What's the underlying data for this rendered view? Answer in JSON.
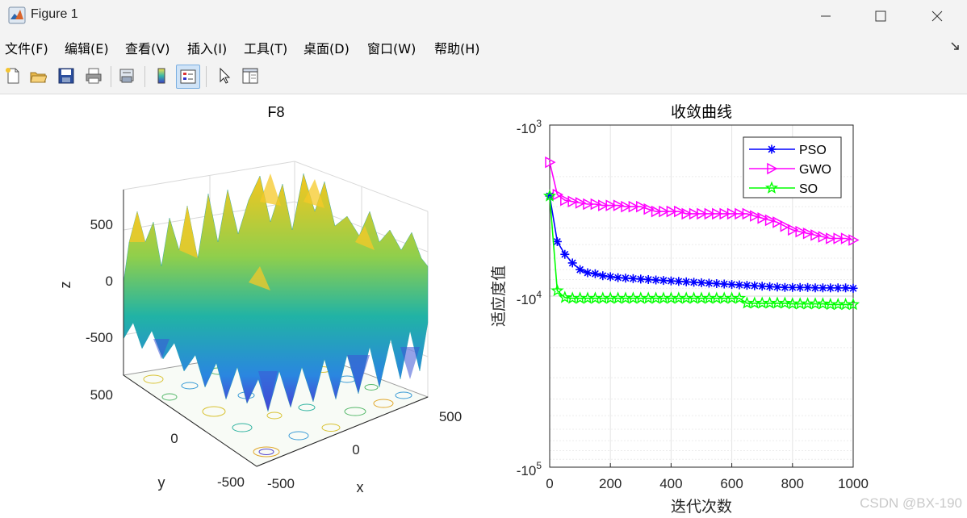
{
  "window": {
    "title": "Figure 1"
  },
  "menu": [
    "文件(F)",
    "编辑(E)",
    "查看(V)",
    "插入(I)",
    "工具(T)",
    "桌面(D)",
    "窗口(W)",
    "帮助(H)"
  ],
  "toolbar": [
    "new-figure-icon",
    "open-file-icon",
    "save-icon",
    "print-icon",
    "print-preview-icon",
    "colorbar-icon",
    "legend-icon",
    "pointer-icon",
    "property-editor-icon"
  ],
  "surface_plot": {
    "title": "F8",
    "xlabel": "x",
    "ylabel": "y",
    "zlabel": "z",
    "z_ticks": [
      "500",
      "0",
      "-500"
    ],
    "y_ticks": [
      "500",
      "0",
      "-500"
    ],
    "x_ticks": [
      "-500",
      "0",
      "500"
    ]
  },
  "chart_data": {
    "type": "line",
    "title": "收敛曲线",
    "xlabel": "迭代次数",
    "ylabel": "适应度值",
    "yscale": "log (negative values)",
    "xlim": [
      0,
      1000
    ],
    "ylim": [
      -1000,
      -100000
    ],
    "x_ticks": [
      "0",
      "200",
      "400",
      "600",
      "800",
      "1000"
    ],
    "y_ticks": [
      {
        "base": "-10",
        "exp": "3"
      },
      {
        "base": "-10",
        "exp": "4"
      },
      {
        "base": "-10",
        "exp": "5"
      }
    ],
    "grid": true,
    "legend_position": "top-right",
    "x": [
      0,
      25,
      50,
      75,
      100,
      125,
      150,
      175,
      200,
      225,
      250,
      275,
      300,
      325,
      350,
      375,
      400,
      425,
      450,
      475,
      500,
      525,
      550,
      575,
      600,
      625,
      650,
      675,
      700,
      725,
      750,
      775,
      800,
      825,
      850,
      875,
      900,
      925,
      950,
      975,
      1000
    ],
    "series": [
      {
        "name": "PSO",
        "color": "#0000ff",
        "marker": "asterisk",
        "values": [
          -2600,
          -4800,
          -5700,
          -6400,
          -7000,
          -7300,
          -7400,
          -7600,
          -7700,
          -7800,
          -7850,
          -7900,
          -7950,
          -8000,
          -8050,
          -8100,
          -8150,
          -8200,
          -8250,
          -8300,
          -8350,
          -8400,
          -8450,
          -8500,
          -8550,
          -8600,
          -8650,
          -8700,
          -8750,
          -8800,
          -8850,
          -8900,
          -8900,
          -8900,
          -8900,
          -8950,
          -8950,
          -8950,
          -8950,
          -8950,
          -9000
        ]
      },
      {
        "name": "GWO",
        "color": "#ff00ff",
        "marker": "triangle-right",
        "values": [
          -1650,
          -2550,
          -2750,
          -2800,
          -2850,
          -2900,
          -2900,
          -2950,
          -2950,
          -2950,
          -3000,
          -3000,
          -3000,
          -3100,
          -3200,
          -3200,
          -3200,
          -3200,
          -3300,
          -3300,
          -3300,
          -3300,
          -3300,
          -3300,
          -3300,
          -3300,
          -3300,
          -3400,
          -3500,
          -3600,
          -3700,
          -3900,
          -4100,
          -4200,
          -4300,
          -4400,
          -4500,
          -4600,
          -4600,
          -4600,
          -4700
        ]
      },
      {
        "name": "SO",
        "color": "#00ff00",
        "marker": "star",
        "values": [
          -2600,
          -9300,
          -10200,
          -10300,
          -10300,
          -10300,
          -10300,
          -10300,
          -10300,
          -10300,
          -10300,
          -10300,
          -10300,
          -10300,
          -10300,
          -10300,
          -10300,
          -10300,
          -10300,
          -10300,
          -10300,
          -10300,
          -10300,
          -10300,
          -10300,
          -10300,
          -11000,
          -11000,
          -11000,
          -11000,
          -11000,
          -11000,
          -11100,
          -11100,
          -11100,
          -11100,
          -11100,
          -11200,
          -11200,
          -11200,
          -11200
        ]
      }
    ]
  },
  "watermark": "CSDN @BX-190"
}
